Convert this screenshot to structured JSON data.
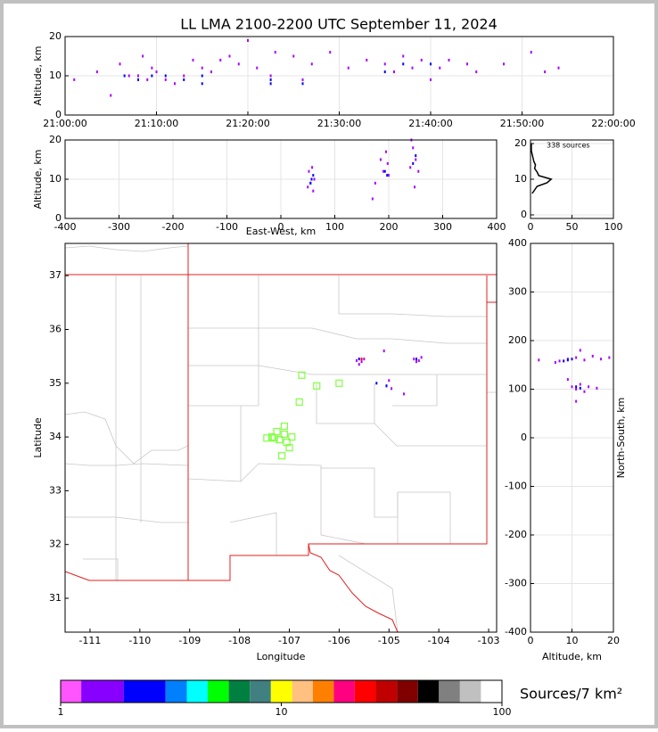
{
  "chart_data": [
    {
      "type": "scatter",
      "title": "LL LMA 2100-2200 UTC September 11, 2024",
      "ylabel": "Altitude, km",
      "xlim": [
        0,
        60
      ],
      "xticks": [
        {
          "value": 0,
          "label": "21:00:00"
        },
        {
          "value": 10,
          "label": "21:10:00"
        },
        {
          "value": 20,
          "label": "21:20:00"
        },
        {
          "value": 30,
          "label": "21:30:00"
        },
        {
          "value": 40,
          "label": "21:40:00"
        },
        {
          "value": 50,
          "label": "21:50:00"
        },
        {
          "value": 60,
          "label": "22:00:00"
        }
      ],
      "ylim": [
        0,
        20
      ],
      "yticks": [
        0,
        10,
        20
      ],
      "grid": true,
      "series": [
        {
          "color": "#aa00ff",
          "x": [
            1,
            3.5,
            5,
            6,
            7,
            8,
            8.5,
            9,
            9.5,
            10,
            11,
            12,
            13,
            14,
            15,
            16,
            17,
            18,
            19,
            20,
            21,
            22.5,
            23,
            25,
            26,
            27,
            29,
            31,
            33,
            35,
            36,
            37,
            38,
            39,
            40,
            41,
            42,
            44,
            45,
            48,
            51,
            52.5,
            54
          ],
          "values": [
            9,
            11,
            5,
            13,
            10,
            10,
            15,
            9,
            12,
            11,
            9,
            8,
            10,
            14,
            12,
            11,
            14,
            15,
            13,
            19,
            12,
            10,
            16,
            15,
            9,
            13,
            16,
            12,
            14,
            13,
            11,
            15,
            12,
            14,
            9,
            12,
            14,
            13,
            11,
            13,
            16,
            11,
            12
          ]
        },
        {
          "color": "#0000ff",
          "x": [
            6.5,
            8,
            9.5,
            11,
            13,
            15,
            15,
            22.5,
            22.5,
            26,
            35,
            37,
            40
          ],
          "values": [
            10,
            9,
            10,
            10,
            9,
            10,
            8,
            9,
            8,
            8,
            11,
            13,
            13
          ]
        }
      ]
    },
    {
      "type": "scatter",
      "xlabel": "East-West, km",
      "ylabel": "Altitude, km",
      "xlim": [
        -400,
        400
      ],
      "xticks": [
        -400,
        -300,
        -200,
        -100,
        0,
        100,
        200,
        300,
        400
      ],
      "ylim": [
        0,
        20
      ],
      "yticks": [
        0,
        10,
        20
      ],
      "grid": true,
      "series": [
        {
          "color": "#aa00ff",
          "x": [
            50,
            52,
            55,
            58,
            60,
            62,
            185,
            190,
            195,
            200,
            198,
            170,
            175,
            240,
            245,
            250,
            255,
            248,
            242
          ],
          "values": [
            8,
            12,
            9,
            13,
            7,
            10,
            15,
            12,
            17,
            11,
            14,
            5,
            9,
            13,
            18,
            15,
            12,
            8,
            20
          ]
        },
        {
          "color": "#0000ff",
          "x": [
            55,
            57,
            60,
            193,
            197,
            245,
            250
          ],
          "values": [
            9,
            10,
            11,
            12,
            11,
            14,
            16
          ]
        }
      ]
    },
    {
      "type": "line",
      "annotation": "338 sources",
      "xlim": [
        0,
        100
      ],
      "xticks": [
        0,
        50,
        100
      ],
      "ylim": [
        -1,
        21
      ],
      "yticks": [
        0,
        10,
        20
      ],
      "grid": true,
      "series": [
        {
          "color": "#000000",
          "x": [
            2,
            5,
            8,
            20,
            25,
            10,
            8,
            5,
            6,
            4,
            3,
            2,
            1,
            1,
            1
          ],
          "values": [
            6,
            7,
            8,
            9,
            10,
            11,
            12,
            13,
            14,
            15,
            16,
            17,
            18,
            19,
            20
          ]
        }
      ]
    },
    {
      "type": "scatter",
      "xlabel": "Longitude",
      "ylabel": "Latitude",
      "xlim": [
        -111.5,
        -102.84
      ],
      "xticks": [
        -111,
        -110,
        -109,
        -108,
        -107,
        -106,
        -105,
        -104,
        -103
      ],
      "ylim": [
        30.37,
        37.6
      ],
      "yticks": [
        31,
        32,
        33,
        34,
        35,
        36,
        37
      ],
      "grid": false,
      "series": [
        {
          "color": "#aa00ff",
          "x": [
            -105.65,
            -105.55,
            -105.6,
            -105.5,
            -104.5,
            -104.4,
            -104.45,
            -104.35,
            -105.05,
            -105.0,
            -104.95,
            -104.7,
            -105.1
          ],
          "values": [
            35.42,
            35.4,
            35.35,
            35.45,
            35.45,
            35.42,
            35.4,
            35.48,
            34.95,
            35.05,
            34.9,
            34.8,
            35.6
          ]
        },
        {
          "color": "#0000ff",
          "x": [
            -105.6,
            -104.45,
            -105.05,
            -105.25
          ],
          "values": [
            35.45,
            35.45,
            34.95,
            35.0
          ]
        },
        {
          "color": "#ff0000",
          "x": [
            -105.55
          ],
          "values": [
            35.45
          ]
        },
        {
          "color": "#80ff40",
          "marker": "square",
          "x": [
            -107.35,
            -107.25,
            -107.2,
            -107.1,
            -107.05,
            -107.1,
            -106.95,
            -107.15,
            -107.0,
            -106.8,
            -106.75,
            -106.45,
            -106.0,
            -107.45,
            -107.3
          ],
          "values": [
            34.0,
            34.1,
            33.95,
            34.2,
            33.9,
            34.05,
            34.0,
            33.65,
            33.8,
            34.65,
            35.15,
            34.95,
            35.0,
            33.98,
            33.98
          ]
        }
      ]
    },
    {
      "type": "scatter",
      "xlabel": "Altitude, km",
      "ylabel": "North-South, km",
      "ylabel_side": "right",
      "xlim": [
        0,
        20
      ],
      "xticks": [
        0,
        10,
        20
      ],
      "ylim": [
        -400,
        400
      ],
      "yticks": [
        -400,
        -300,
        -200,
        -100,
        0,
        100,
        200,
        300,
        400
      ],
      "grid": true,
      "series": [
        {
          "color": "#aa00ff",
          "x": [
            2,
            6,
            7,
            9,
            11,
            13,
            15,
            17,
            19,
            10,
            11,
            12,
            13,
            14,
            16,
            11,
            12,
            9
          ],
          "values": [
            160,
            155,
            158,
            162,
            165,
            160,
            168,
            162,
            165,
            105,
            100,
            110,
            95,
            105,
            102,
            75,
            180,
            120
          ]
        },
        {
          "color": "#0000ff",
          "x": [
            8,
            9,
            11,
            12,
            10
          ],
          "values": [
            158,
            160,
            105,
            102,
            162
          ]
        }
      ]
    },
    {
      "type": "colorbar",
      "label": "Sources/7 km²",
      "log": true,
      "xlim": [
        1,
        100
      ],
      "xticks": [
        1,
        10,
        100
      ],
      "bounds": [
        1,
        1.24,
        1.93,
        2.99,
        3.73,
        4.64,
        5.78,
        7.2,
        8.97,
        11.2,
        13.9,
        17.3,
        21.5,
        26.8,
        33.4,
        41.6,
        51.8,
        64.5,
        80.3,
        100
      ],
      "colors": [
        "#ff55ff",
        "#8800ff",
        "#0000ff",
        "#0080ff",
        "#00ffff",
        "#00ff00",
        "#008040",
        "#408080",
        "#ffff00",
        "#ffc080",
        "#ff8000",
        "#ff0080",
        "#ff0000",
        "#c00000",
        "#800000",
        "#000000",
        "#808080",
        "#c0c0c0",
        "#ffffff"
      ]
    }
  ]
}
